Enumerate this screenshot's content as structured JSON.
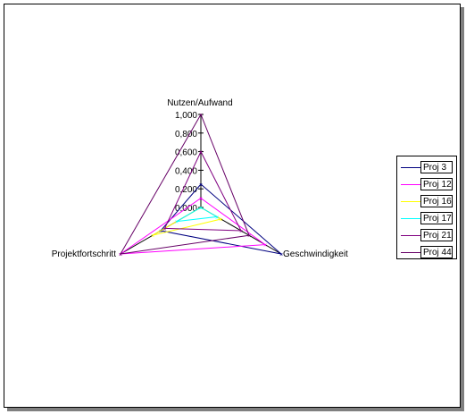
{
  "chart_data": {
    "type": "radar",
    "axes": [
      "Nutzen/Aufwand",
      "Geschwindigkeit",
      "Projektfortschritt"
    ],
    "rlim": [
      0,
      1
    ],
    "tick_labels": [
      "0,000",
      "0,200",
      "0,400",
      "0,600",
      "0,800",
      "1,000"
    ],
    "series": [
      {
        "name": "Proj 3",
        "color": "#000080",
        "values": [
          0.25,
          1.0,
          0.5
        ]
      },
      {
        "name": "Proj 12",
        "color": "#ff00ff",
        "values": [
          0.1,
          0.8,
          1.0
        ]
      },
      {
        "name": "Proj 16",
        "color": "#ffff00",
        "values": [
          0.0,
          0.25,
          0.6
        ]
      },
      {
        "name": "Proj 17",
        "color": "#00ffff",
        "values": [
          0.0,
          0.2,
          0.3
        ]
      },
      {
        "name": "Proj 21",
        "color": "#800080",
        "values": [
          0.6,
          0.5,
          0.45
        ]
      },
      {
        "name": "Proj 44",
        "color": "#660066",
        "values": [
          1.0,
          0.6,
          1.0
        ]
      }
    ],
    "legend": "right"
  }
}
